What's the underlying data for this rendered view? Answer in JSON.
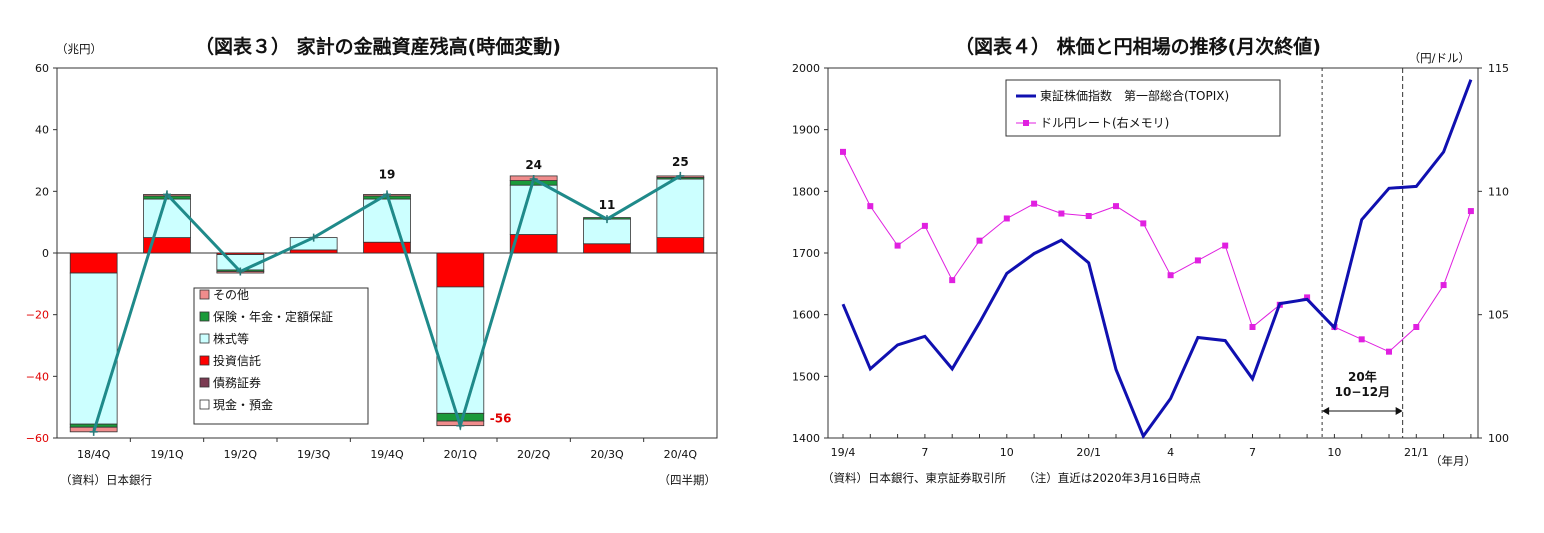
{
  "chart_data": [
    {
      "type": "bar",
      "title": "（図表３） 家計の金融資産残高(時価変動)",
      "ylabel": "（兆円）",
      "xlabel": "（四半期）",
      "source": "（資料）日本銀行",
      "ylim": [
        -60,
        60
      ],
      "yticks": [
        "60",
        "40",
        "20",
        "0",
        "−20",
        "−40",
        "−60"
      ],
      "categories": [
        "18/4Q",
        "19/1Q",
        "19/2Q",
        "19/3Q",
        "19/4Q",
        "20/1Q",
        "20/2Q",
        "20/3Q",
        "20/4Q"
      ],
      "series": [
        {
          "name": "現金・預金",
          "color": "#ffffff",
          "values": [
            0,
            0,
            0,
            0,
            0,
            0,
            0,
            0,
            0
          ]
        },
        {
          "name": "債務証券",
          "color": "#7b3b52",
          "values": [
            0,
            0,
            0,
            0,
            0,
            0,
            0,
            0,
            0
          ]
        },
        {
          "name": "投資信託",
          "color": "#ff0000",
          "values": [
            -6.5,
            5,
            -0.5,
            1,
            3.5,
            -11,
            6,
            3,
            5
          ]
        },
        {
          "name": "株式等",
          "color": "#ccffff",
          "values": [
            -49,
            12.5,
            -5,
            4,
            14,
            -41,
            16,
            8,
            19
          ]
        },
        {
          "name": "保険・年金・定額保証",
          "color": "#1a9a3a",
          "values": [
            -1,
            1,
            -0.5,
            0,
            1,
            -2.5,
            1.5,
            0.5,
            0.5
          ]
        },
        {
          "name": "その他",
          "color": "#f08c8c",
          "values": [
            -1.5,
            0.5,
            -0.5,
            0,
            0.5,
            -1.5,
            1.5,
            0,
            0.5
          ]
        }
      ],
      "total": {
        "color": "#1f8a8a",
        "values": [
          -58,
          19,
          -6,
          5,
          19,
          -56,
          24,
          11,
          25
        ]
      },
      "data_labels": [
        {
          "index": 4,
          "text": "19"
        },
        {
          "index": 5,
          "text": "-56",
          "color": "#e00000"
        },
        {
          "index": 6,
          "text": "24"
        },
        {
          "index": 7,
          "text": "11"
        },
        {
          "index": 8,
          "text": "25"
        }
      ]
    },
    {
      "type": "line",
      "title": "（図表４） 株価と円相場の推移(月次終値)",
      "ylabel_right": "（円/ドル）",
      "xlabel": "（年月）",
      "source": "（資料）日本銀行、東京証券取引所　　（注）直近は2020年3月16日時点",
      "ylim_left": [
        1400,
        2000
      ],
      "ylim_right": [
        100,
        115
      ],
      "yticks_left": [
        "2000",
        "1900",
        "1800",
        "1700",
        "1600",
        "1500",
        "1400"
      ],
      "yticks_right": [
        "115",
        "110",
        "105",
        "100"
      ],
      "x": [
        "19/4",
        "19/5",
        "19/6",
        "19/7",
        "19/8",
        "19/9",
        "19/10",
        "19/11",
        "19/12",
        "20/1",
        "20/2",
        "20/3",
        "20/4",
        "20/5",
        "20/6",
        "20/7",
        "20/8",
        "20/9",
        "20/10",
        "20/11",
        "20/12",
        "21/1",
        "21/2",
        "21/3"
      ],
      "x_tick_labels": [
        {
          "index": 0,
          "text": "19/4"
        },
        {
          "index": 3,
          "text": "7"
        },
        {
          "index": 6,
          "text": "10"
        },
        {
          "index": 9,
          "text": "20/1"
        },
        {
          "index": 12,
          "text": "4"
        },
        {
          "index": 15,
          "text": "7"
        },
        {
          "index": 18,
          "text": "10"
        },
        {
          "index": 21,
          "text": "21/1"
        }
      ],
      "series": [
        {
          "name": "東証株価指数　第一部総合(TOPIX)",
          "axis": "left",
          "color": "#1010b0",
          "values": [
            1617,
            1512,
            1551,
            1565,
            1512,
            1587,
            1667,
            1699,
            1721,
            1684,
            1511,
            1403,
            1464,
            1563,
            1558,
            1496,
            1618,
            1625,
            1579,
            1754,
            1805,
            1808,
            1864,
            1981
          ]
        },
        {
          "name": "ドル円レート(右メモリ)",
          "axis": "right",
          "color": "#e020e0",
          "values": [
            111.6,
            109.4,
            107.8,
            108.6,
            106.4,
            108.0,
            108.9,
            109.5,
            109.1,
            109.0,
            109.4,
            108.7,
            106.6,
            107.2,
            107.8,
            104.5,
            105.4,
            105.7,
            104.5,
            104.0,
            103.5,
            104.5,
            106.2,
            109.2
          ]
        }
      ],
      "annotation": {
        "text_year": "20年",
        "text_range": "10−12月"
      }
    }
  ]
}
